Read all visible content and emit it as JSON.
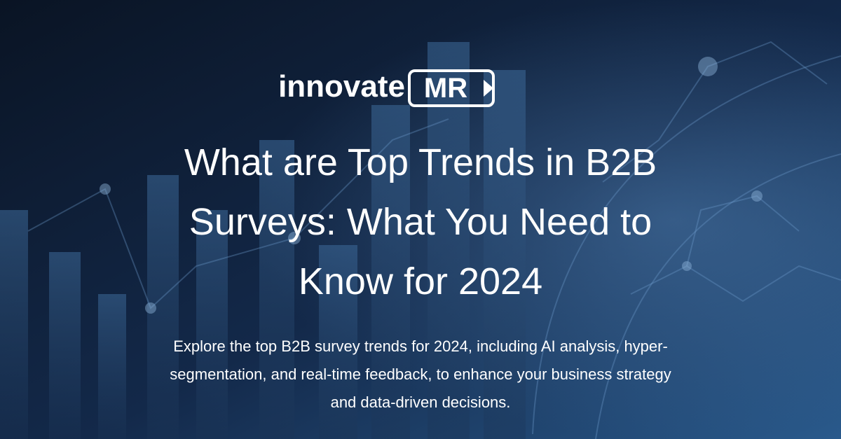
{
  "logo": {
    "name": "innovate",
    "mark": "MR"
  },
  "title_lines": [
    "What are Top Trends in B2B",
    "Surveys: What You Need to",
    "Know for 2024"
  ],
  "description_lines": [
    "Explore the top B2B survey trends for 2024, including AI analysis, hyper-",
    "segmentation, and real-time feedback, to enhance your business strategy",
    "and data-driven decisions."
  ]
}
